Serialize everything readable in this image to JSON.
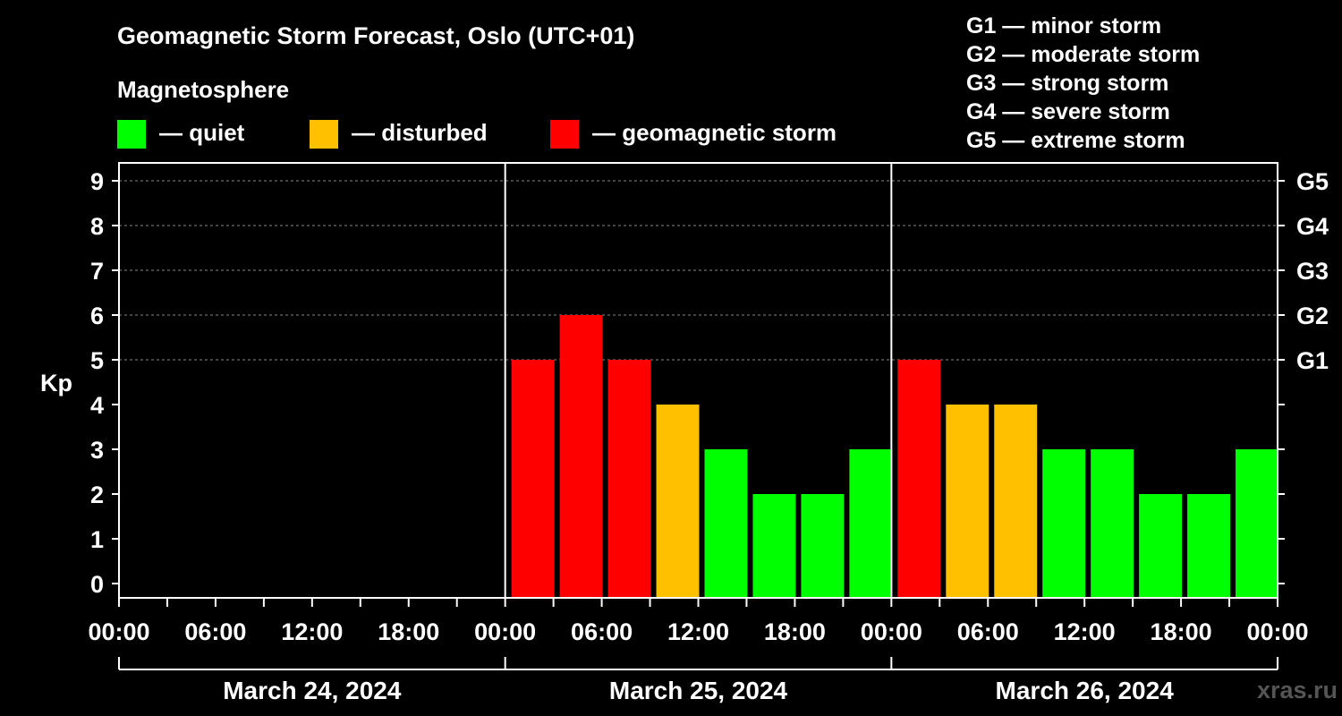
{
  "chart_data": {
    "type": "bar",
    "title": "Geomagnetic Storm Forecast, Oslo (UTC+01)",
    "legend_title": "Magnetosphere",
    "legend": [
      {
        "label": "— quiet",
        "color": "#00ff00"
      },
      {
        "label": "— disturbed",
        "color": "#ffc000"
      },
      {
        "label": "— geomagnetic storm",
        "color": "#ff0000"
      }
    ],
    "storm_scale": [
      "G1 — minor storm",
      "G2 — moderate storm",
      "G3 — strong storm",
      "G4 — severe storm",
      "G5 — extreme storm"
    ],
    "ylabel": "Kp",
    "ylim": [
      0,
      9
    ],
    "y_ticks": [
      "0",
      "1",
      "2",
      "3",
      "4",
      "5",
      "6",
      "7",
      "8",
      "9"
    ],
    "right_ticks": [
      {
        "kp": 5,
        "label": "G1"
      },
      {
        "kp": 6,
        "label": "G2"
      },
      {
        "kp": 7,
        "label": "G3"
      },
      {
        "kp": 8,
        "label": "G4"
      },
      {
        "kp": 9,
        "label": "G5"
      }
    ],
    "x_tick_labels": [
      "00:00",
      "06:00",
      "12:00",
      "18:00",
      "00:00",
      "06:00",
      "12:00",
      "18:00",
      "00:00",
      "06:00",
      "12:00",
      "18:00",
      "00:00"
    ],
    "days": [
      "March 24, 2024",
      "March 25, 2024",
      "March 26, 2024"
    ],
    "values": [
      null,
      null,
      null,
      null,
      null,
      null,
      null,
      null,
      5,
      6,
      5,
      4,
      3,
      2,
      2,
      3,
      5,
      4,
      4,
      3,
      3,
      2,
      2,
      3
    ],
    "grid": "dashed at Kp 5-9",
    "watermark": "xras.ru"
  }
}
